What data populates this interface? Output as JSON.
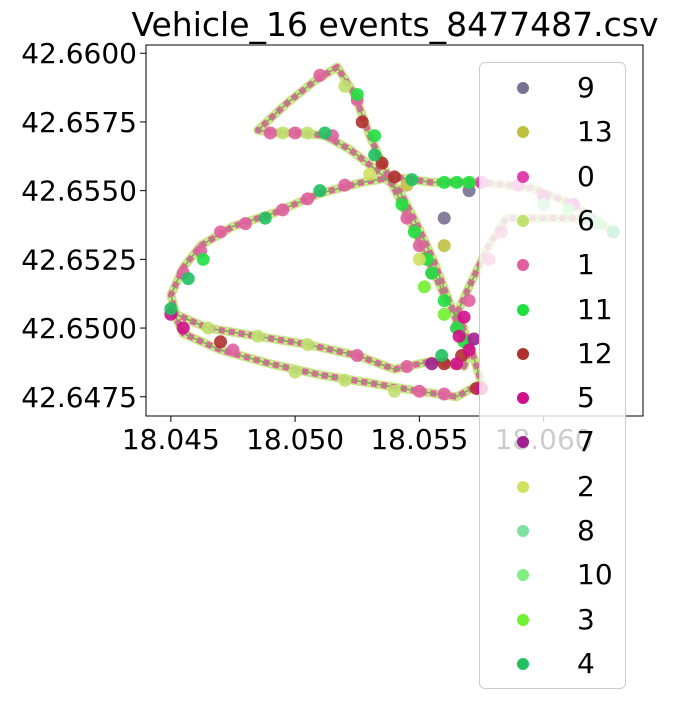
{
  "chart_data": {
    "type": "scatter",
    "title": "Vehicle_16 events_8477487.csv",
    "xlabel": "",
    "ylabel": "",
    "xlim": [
      18.044,
      18.064
    ],
    "ylim": [
      42.6468,
      42.6603
    ],
    "x_ticks": [
      "18.045",
      "18.050",
      "18.055",
      "18.060"
    ],
    "x_tick_values": [
      18.045,
      18.05,
      18.055,
      18.06
    ],
    "y_ticks": [
      "42.6475",
      "42.6500",
      "42.6525",
      "42.6550",
      "42.6575",
      "42.6600"
    ],
    "y_tick_values": [
      42.6475,
      42.65,
      42.6525,
      42.655,
      42.6575,
      42.66
    ],
    "grid": false,
    "legend_position": "right",
    "route": [
      [
        18.0568,
        42.65
      ],
      [
        18.056,
        42.6512
      ],
      [
        18.0552,
        42.6528
      ],
      [
        18.0543,
        42.6545
      ],
      [
        18.0535,
        42.656
      ],
      [
        18.053,
        42.657
      ],
      [
        18.0524,
        42.6585
      ],
      [
        18.0517,
        42.6595
      ],
      [
        18.0508,
        42.659
      ],
      [
        18.0497,
        42.6582
      ],
      [
        18.0485,
        42.6572
      ],
      [
        18.0492,
        42.6571
      ],
      [
        18.0502,
        42.6571
      ],
      [
        18.0512,
        42.657
      ],
      [
        18.0522,
        42.6565
      ],
      [
        18.0532,
        42.6558
      ],
      [
        18.0542,
        42.655
      ],
      [
        18.055,
        42.6536
      ],
      [
        18.0556,
        42.6524
      ],
      [
        18.0561,
        42.6512
      ],
      [
        18.0566,
        42.65
      ],
      [
        18.057,
        42.6492
      ],
      [
        18.0568,
        42.6486
      ],
      [
        18.0555,
        42.6488
      ],
      [
        18.054,
        42.6485
      ],
      [
        18.0525,
        42.649
      ],
      [
        18.0505,
        42.6494
      ],
      [
        18.0485,
        42.6497
      ],
      [
        18.0465,
        42.65
      ],
      [
        18.0452,
        42.6505
      ],
      [
        18.045,
        42.6512
      ],
      [
        18.0455,
        42.6522
      ],
      [
        18.0462,
        42.653
      ],
      [
        18.0475,
        42.6537
      ],
      [
        18.0492,
        42.6542
      ],
      [
        18.051,
        42.6549
      ],
      [
        18.0527,
        42.6553
      ],
      [
        18.054,
        42.6555
      ],
      [
        18.0555,
        42.6553
      ],
      [
        18.0575,
        42.6553
      ],
      [
        18.0595,
        42.6551
      ],
      [
        18.0612,
        42.6545
      ],
      [
        18.0625,
        42.6537
      ],
      [
        18.0612,
        42.654
      ],
      [
        18.0595,
        42.654
      ],
      [
        18.0585,
        42.654
      ],
      [
        18.0578,
        42.653
      ],
      [
        18.057,
        42.6515
      ],
      [
        18.0565,
        42.6505
      ],
      [
        18.057,
        42.6495
      ],
      [
        18.0575,
        42.648
      ],
      [
        18.0565,
        42.6475
      ],
      [
        18.055,
        42.6477
      ],
      [
        18.053,
        42.648
      ],
      [
        18.051,
        42.6483
      ],
      [
        18.049,
        42.6487
      ],
      [
        18.047,
        42.6492
      ],
      [
        18.0455,
        42.6498
      ],
      [
        18.045,
        42.6508
      ]
    ],
    "series": [
      {
        "name": "9",
        "color": "#7a7094",
        "points": [
          [
            18.057,
            42.655
          ],
          [
            18.056,
            42.654
          ]
        ]
      },
      {
        "name": "13",
        "color": "#c0c040",
        "points": [
          [
            18.056,
            42.653
          ],
          [
            18.0545,
            42.6552
          ]
        ]
      },
      {
        "name": "0",
        "color": "#e040b0",
        "points": [
          [
            18.0575,
            42.6553
          ],
          [
            18.059,
            42.6552
          ],
          [
            18.06,
            42.6548
          ],
          [
            18.0612,
            42.6545
          ]
        ]
      },
      {
        "name": "6",
        "color": "#c0e070",
        "points": [
          [
            18.0495,
            42.6571
          ],
          [
            18.0505,
            42.6571
          ],
          [
            18.052,
            42.6588
          ],
          [
            18.0465,
            42.65
          ],
          [
            18.0485,
            42.6497
          ],
          [
            18.0505,
            42.6494
          ],
          [
            18.054,
            42.6477
          ],
          [
            18.052,
            42.6481
          ],
          [
            18.05,
            42.6484
          ]
        ]
      },
      {
        "name": "1",
        "color": "#e060a0",
        "points": [
          [
            18.051,
            42.6592
          ],
          [
            18.0525,
            42.6583
          ],
          [
            18.049,
            42.6571
          ],
          [
            18.05,
            42.6571
          ],
          [
            18.0515,
            42.657
          ],
          [
            18.047,
            42.6535
          ],
          [
            18.048,
            42.6538
          ],
          [
            18.0495,
            42.6543
          ],
          [
            18.0505,
            42.6547
          ],
          [
            18.052,
            42.6552
          ],
          [
            18.0455,
            42.652
          ],
          [
            18.0462,
            42.6528
          ],
          [
            18.0525,
            42.649
          ],
          [
            18.0545,
            42.6486
          ],
          [
            18.0475,
            42.6492
          ],
          [
            18.056,
            42.6476
          ],
          [
            18.055,
            42.6477
          ],
          [
            18.0565,
            42.65
          ],
          [
            18.057,
            42.651
          ],
          [
            18.0578,
            42.6525
          ],
          [
            18.0583,
            42.6535
          ],
          [
            18.0555,
            42.652
          ],
          [
            18.055,
            42.653
          ],
          [
            18.0545,
            42.654
          ]
        ]
      },
      {
        "name": "11",
        "color": "#20e040",
        "points": [
          [
            18.0525,
            42.6585
          ],
          [
            18.056,
            42.6553
          ],
          [
            18.0565,
            42.6553
          ],
          [
            18.057,
            42.6553
          ],
          [
            18.0555,
            42.652
          ],
          [
            18.056,
            42.651
          ],
          [
            18.0565,
            42.65
          ],
          [
            18.0568,
            42.6495
          ],
          [
            18.0543,
            42.6545
          ],
          [
            18.0548,
            42.6535
          ],
          [
            18.0553,
            42.6525
          ],
          [
            18.0463,
            42.6525
          ],
          [
            18.0532,
            42.657
          ]
        ]
      },
      {
        "name": "12",
        "color": "#b03030",
        "points": [
          [
            18.0527,
            42.6575
          ],
          [
            18.0535,
            42.656
          ],
          [
            18.054,
            42.6555
          ],
          [
            18.047,
            42.6495
          ],
          [
            18.056,
            42.6487
          ],
          [
            18.0567,
            42.649
          ],
          [
            18.0573,
            42.6478
          ]
        ]
      },
      {
        "name": "5",
        "color": "#d0108a",
        "points": [
          [
            18.045,
            42.6505
          ],
          [
            18.0455,
            42.65
          ],
          [
            18.0565,
            42.6487
          ],
          [
            18.057,
            42.6492
          ],
          [
            18.0575,
            42.6478
          ],
          [
            18.0566,
            42.6497
          ],
          [
            18.0568,
            42.6504
          ]
        ]
      },
      {
        "name": "7",
        "color": "#a02090",
        "points": [
          [
            18.0555,
            42.6487
          ],
          [
            18.0572,
            42.6496
          ]
        ]
      },
      {
        "name": "2",
        "color": "#d0e060",
        "points": [
          [
            18.053,
            42.6556
          ],
          [
            18.055,
            42.6525
          ]
        ]
      },
      {
        "name": "8",
        "color": "#80e0a0",
        "points": [
          [
            18.06,
            42.6545
          ],
          [
            18.0618,
            42.654
          ]
        ]
      },
      {
        "name": "10",
        "color": "#80f080",
        "points": [
          [
            18.061,
            42.6543
          ],
          [
            18.0622,
            42.6538
          ]
        ]
      },
      {
        "name": "3",
        "color": "#70f030",
        "points": [
          [
            18.056,
            42.6505
          ],
          [
            18.0552,
            42.6515
          ]
        ]
      },
      {
        "name": "4",
        "color": "#20c060",
        "points": [
          [
            18.045,
            42.6507
          ],
          [
            18.0457,
            42.6518
          ],
          [
            18.0488,
            42.654
          ],
          [
            18.051,
            42.655
          ],
          [
            18.0532,
            42.6563
          ],
          [
            18.0547,
            42.6554
          ],
          [
            18.0559,
            42.649
          ],
          [
            18.0628,
            42.6535
          ],
          [
            18.0512,
            42.6571
          ]
        ]
      }
    ]
  }
}
